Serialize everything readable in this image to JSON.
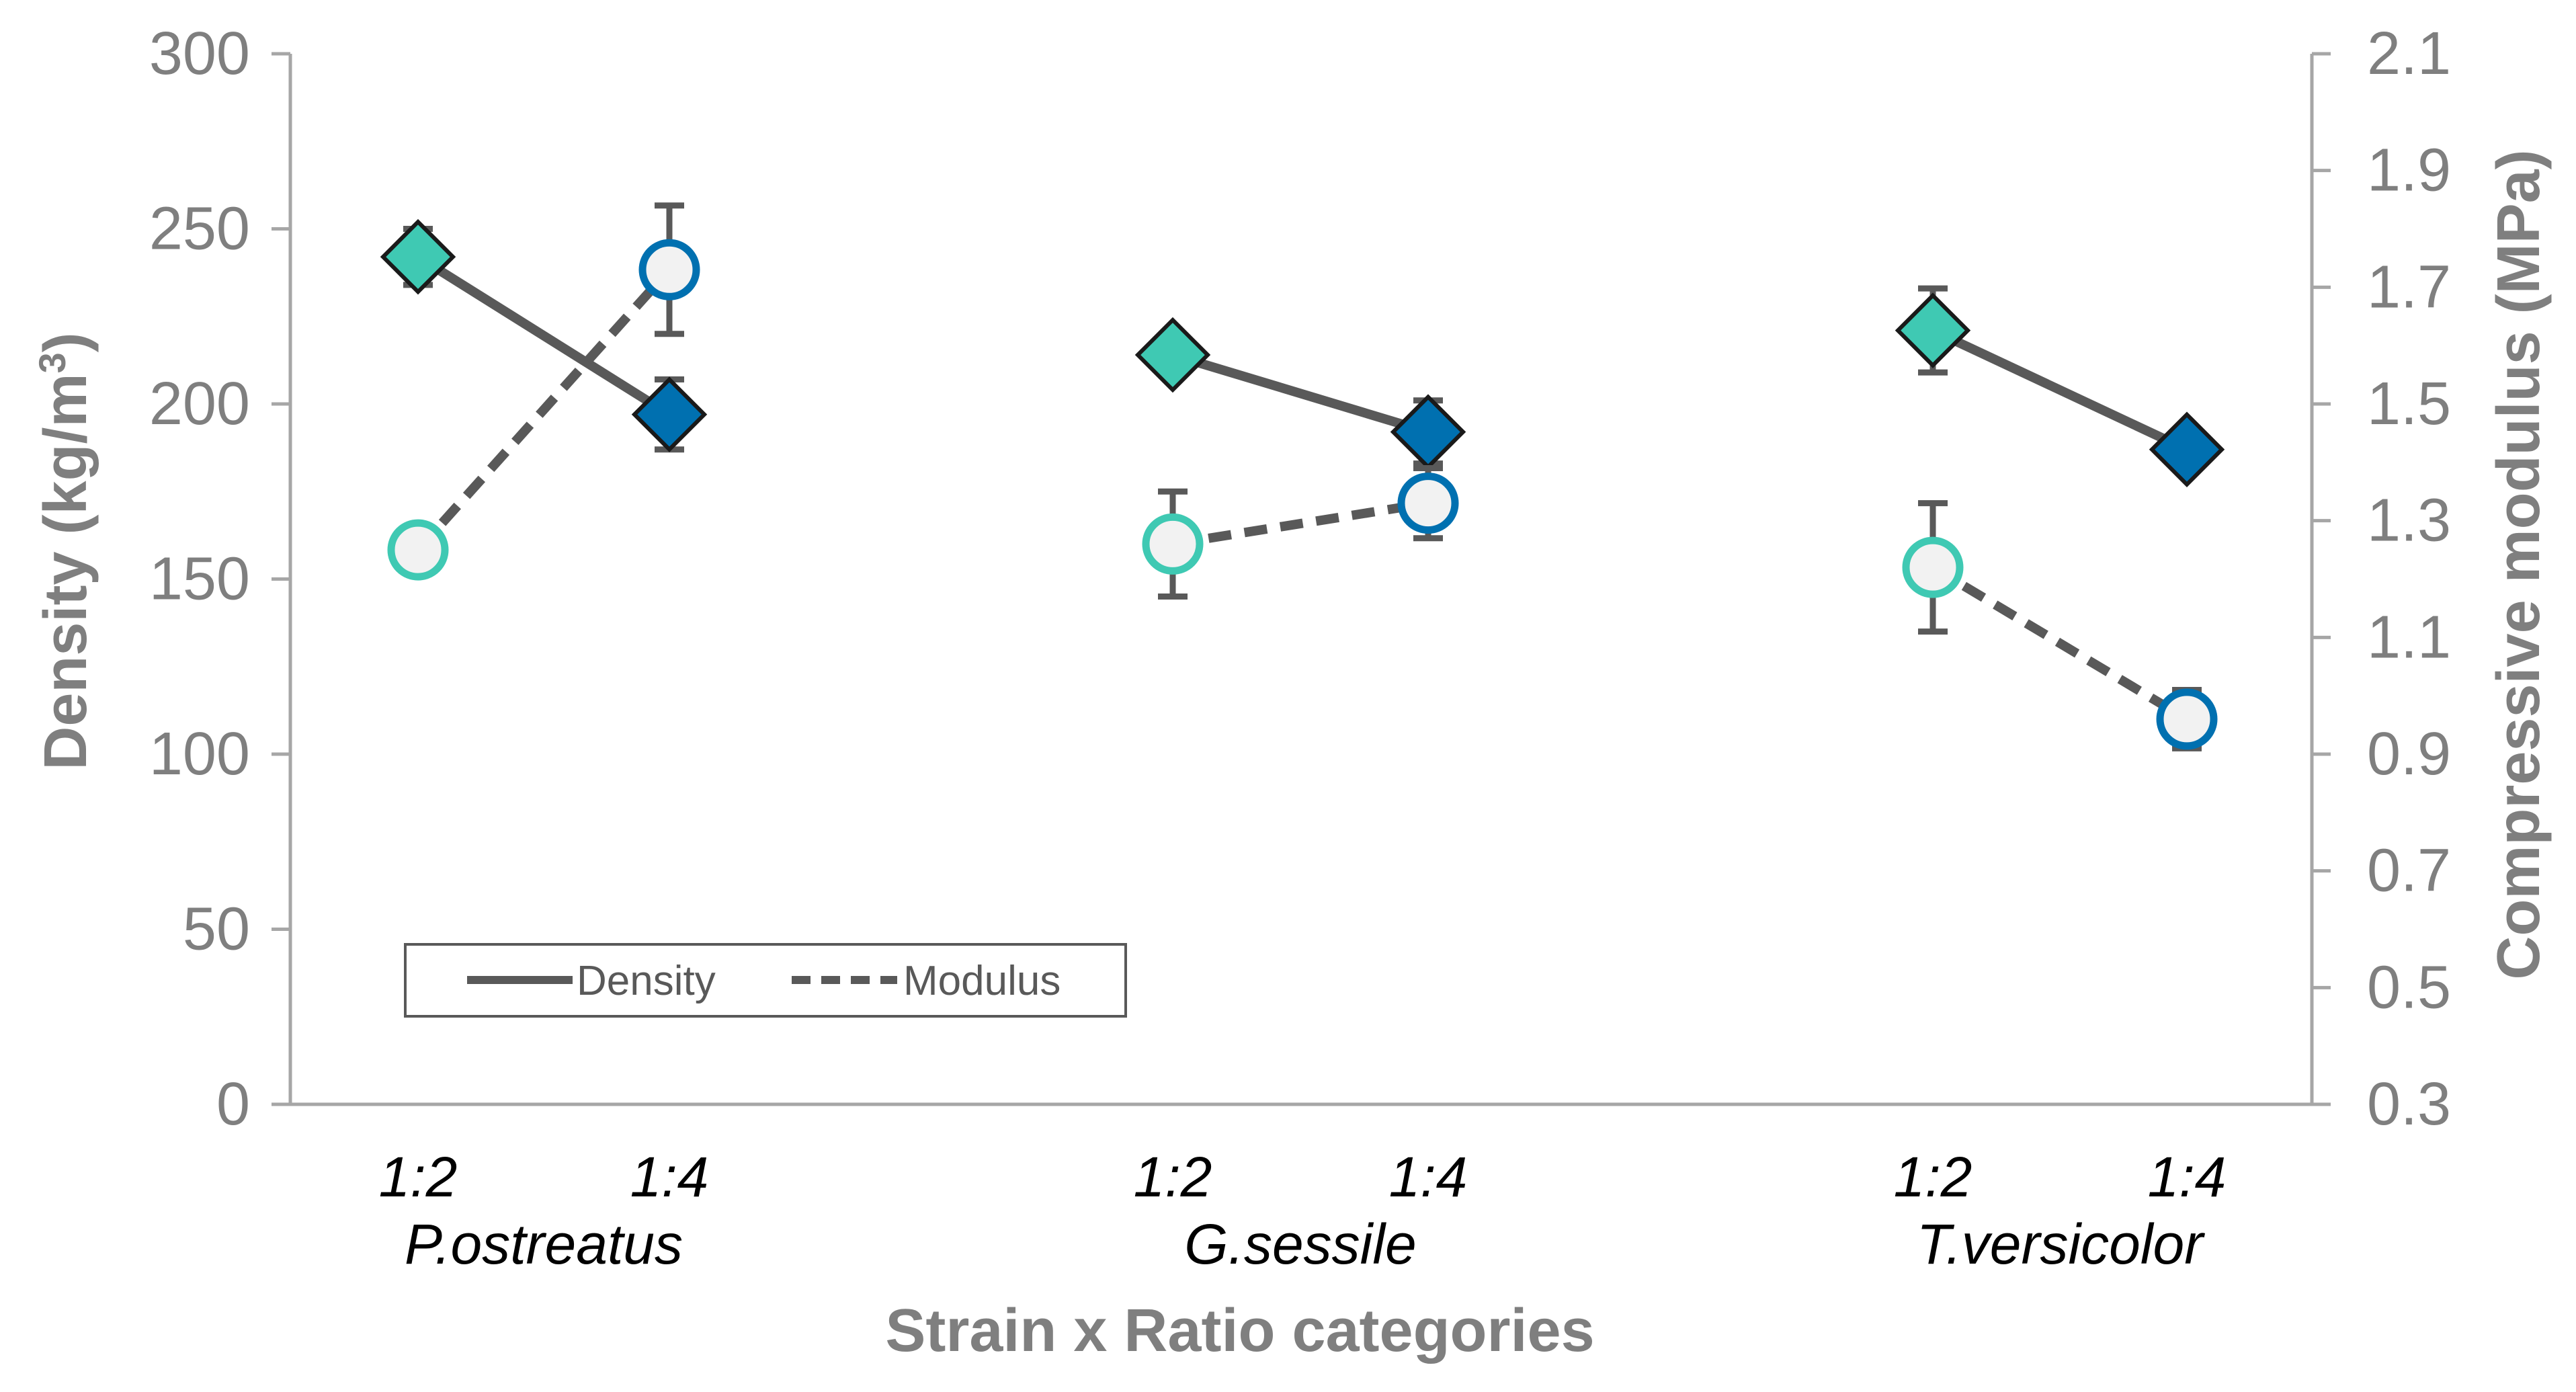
{
  "chart_data": {
    "type": "line",
    "title": "",
    "xlabel": "Strain x Ratio categories",
    "ylabel_left_main": "Density (kg/m",
    "ylabel_left_sup": "3",
    "ylabel_left_close": ")",
    "ylabel_right": "Compressive modulus (MPa)",
    "left_axis": {
      "min": 0,
      "max": 300,
      "ticks": [
        0,
        50,
        100,
        150,
        200,
        250,
        300
      ]
    },
    "right_axis": {
      "min": 0.3,
      "max": 2.1,
      "ticks": [
        "0.3",
        "0.5",
        "0.7",
        "0.9",
        "1.1",
        "1.3",
        "1.5",
        "1.7",
        "1.9",
        "2.1"
      ]
    },
    "groups": [
      {
        "strain": "P.ostreatus",
        "ratios": [
          "1:2",
          "1:4"
        ]
      },
      {
        "strain": "G.sessile",
        "ratios": [
          "1:2",
          "1:4"
        ]
      },
      {
        "strain": "T.versicolor",
        "ratios": [
          "1:2",
          "1:4"
        ]
      }
    ],
    "series": [
      {
        "name": "Density",
        "axis": "left",
        "line_style": "solid",
        "marker": "diamond",
        "values": [
          [
            242,
            197
          ],
          [
            214,
            192
          ],
          [
            221,
            187
          ]
        ],
        "errors": [
          [
            8,
            10
          ],
          [
            0,
            9
          ],
          [
            12,
            0
          ]
        ]
      },
      {
        "name": "Modulus",
        "axis": "right",
        "line_style": "dashed",
        "marker": "circle",
        "values": [
          [
            1.25,
            1.73
          ],
          [
            1.26,
            1.33
          ],
          [
            1.22,
            0.96
          ]
        ],
        "errors": [
          [
            0.02,
            0.11
          ],
          [
            0.09,
            0.06
          ],
          [
            0.11,
            0.05
          ]
        ]
      }
    ],
    "legend": {
      "position": "bottom-left",
      "entries": [
        "Density",
        "Modulus"
      ]
    },
    "grid": false
  },
  "colors": {
    "ratio_1_2": "#3fc9b3",
    "ratio_1_4": "#0070b0",
    "line": "#595959",
    "axis": "#a6a6a6",
    "label": "#7f7f7f",
    "circle_fill": "#f2f2f2"
  }
}
